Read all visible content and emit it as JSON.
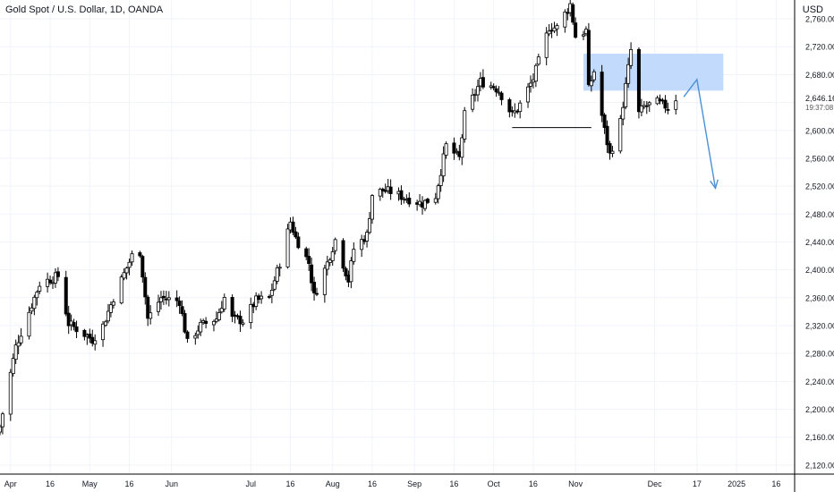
{
  "header": {
    "title": "Gold Spot / U.S. Dollar, 1D, OANDA",
    "currency": "USD"
  },
  "price_scale": {
    "current_price": "2,646.160",
    "countdown": "19:37:08"
  },
  "chart_data": {
    "type": "candlestick",
    "y_ticks": [
      "2,760.000",
      "2,720.000",
      "2,680.000",
      "2,640.000",
      "2,600.000",
      "2,560.000",
      "2,520.000",
      "2,480.000",
      "2,440.000",
      "2,400.000",
      "2,360.000",
      "2,320.000",
      "2,280.000",
      "2,240.000",
      "2,200.000",
      "2,160.000",
      "2,120.000"
    ],
    "ylim": [
      2107,
      2787
    ],
    "x_ticks": [
      {
        "label": "Apr",
        "date": "2024-04-01"
      },
      {
        "label": "16",
        "date": "2024-04-16"
      },
      {
        "label": "May",
        "date": "2024-05-01"
      },
      {
        "label": "16",
        "date": "2024-05-16"
      },
      {
        "label": "Jun",
        "date": "2024-06-01"
      },
      {
        "label": "Jul",
        "date": "2024-07-01"
      },
      {
        "label": "16",
        "date": "2024-07-16"
      },
      {
        "label": "Aug",
        "date": "2024-08-01"
      },
      {
        "label": "16",
        "date": "2024-08-16"
      },
      {
        "label": "Sep",
        "date": "2024-09-01"
      },
      {
        "label": "16",
        "date": "2024-09-16"
      },
      {
        "label": "Oct",
        "date": "2024-10-01"
      },
      {
        "label": "16",
        "date": "2024-10-16"
      },
      {
        "label": "Nov",
        "date": "2024-11-01"
      },
      {
        "label": "Dec",
        "date": "2024-12-01"
      },
      {
        "label": "17",
        "date": "2024-12-17"
      },
      {
        "label": "2025",
        "date": "2025-01-01"
      },
      {
        "label": "16",
        "date": "2025-01-16"
      }
    ],
    "xlim": [
      "2024-03-28",
      "2025-01-23"
    ],
    "anchors": [
      {
        "d": "2024-03-28",
        "p": 2175
      },
      {
        "d": "2024-04-03",
        "p": 2290
      },
      {
        "d": "2024-04-08",
        "p": 2340
      },
      {
        "d": "2024-04-12",
        "p": 2380
      },
      {
        "d": "2024-04-15",
        "p": 2385
      },
      {
        "d": "2024-04-19",
        "p": 2391
      },
      {
        "d": "2024-04-23",
        "p": 2323
      },
      {
        "d": "2024-05-02",
        "p": 2300
      },
      {
        "d": "2024-05-06",
        "p": 2320
      },
      {
        "d": "2024-05-10",
        "p": 2360
      },
      {
        "d": "2024-05-17",
        "p": 2420
      },
      {
        "d": "2024-05-20",
        "p": 2426
      },
      {
        "d": "2024-05-23",
        "p": 2330
      },
      {
        "d": "2024-05-28",
        "p": 2360
      },
      {
        "d": "2024-06-04",
        "p": 2355
      },
      {
        "d": "2024-06-07",
        "p": 2295
      },
      {
        "d": "2024-06-12",
        "p": 2320
      },
      {
        "d": "2024-06-18",
        "p": 2330
      },
      {
        "d": "2024-06-21",
        "p": 2360
      },
      {
        "d": "2024-06-24",
        "p": 2330
      },
      {
        "d": "2024-06-28",
        "p": 2327
      },
      {
        "d": "2024-07-03",
        "p": 2356
      },
      {
        "d": "2024-07-08",
        "p": 2360
      },
      {
        "d": "2024-07-12",
        "p": 2410
      },
      {
        "d": "2024-07-16",
        "p": 2469
      },
      {
        "d": "2024-07-18",
        "p": 2446
      },
      {
        "d": "2024-07-23",
        "p": 2410
      },
      {
        "d": "2024-07-25",
        "p": 2362
      },
      {
        "d": "2024-07-30",
        "p": 2410
      },
      {
        "d": "2024-08-02",
        "p": 2443
      },
      {
        "d": "2024-08-07",
        "p": 2385
      },
      {
        "d": "2024-08-09",
        "p": 2430
      },
      {
        "d": "2024-08-14",
        "p": 2450
      },
      {
        "d": "2024-08-16",
        "p": 2508
      },
      {
        "d": "2024-08-20",
        "p": 2514
      },
      {
        "d": "2024-08-23",
        "p": 2512
      },
      {
        "d": "2024-08-28",
        "p": 2504
      },
      {
        "d": "2024-09-04",
        "p": 2495
      },
      {
        "d": "2024-09-09",
        "p": 2506
      },
      {
        "d": "2024-09-13",
        "p": 2578
      },
      {
        "d": "2024-09-18",
        "p": 2560
      },
      {
        "d": "2024-09-20",
        "p": 2622
      },
      {
        "d": "2024-09-26",
        "p": 2670
      },
      {
        "d": "2024-10-01",
        "p": 2663
      },
      {
        "d": "2024-10-03",
        "p": 2657
      },
      {
        "d": "2024-10-08",
        "p": 2622
      },
      {
        "d": "2024-10-10",
        "p": 2630
      },
      {
        "d": "2024-10-16",
        "p": 2674
      },
      {
        "d": "2024-10-22",
        "p": 2748
      },
      {
        "d": "2024-10-25",
        "p": 2747
      },
      {
        "d": "2024-10-30",
        "p": 2781
      },
      {
        "d": "2024-11-01",
        "p": 2735
      },
      {
        "d": "2024-11-05",
        "p": 2743
      },
      {
        "d": "2024-11-06",
        "p": 2659
      },
      {
        "d": "2024-11-08",
        "p": 2685
      },
      {
        "d": "2024-11-12",
        "p": 2600
      },
      {
        "d": "2024-11-14",
        "p": 2565
      },
      {
        "d": "2024-11-18",
        "p": 2612
      },
      {
        "d": "2024-11-22",
        "p": 2715
      },
      {
        "d": "2024-11-25",
        "p": 2624
      },
      {
        "d": "2024-11-27",
        "p": 2634
      },
      {
        "d": "2024-12-02",
        "p": 2640
      },
      {
        "d": "2024-12-06",
        "p": 2633
      },
      {
        "d": "2024-12-09",
        "p": 2646
      }
    ],
    "supply_zone": {
      "from": "2024-11-04",
      "to": "2024-12-27",
      "low": 2657,
      "high": 2710
    },
    "support_line": {
      "from": "2024-10-08",
      "to": "2024-11-07",
      "price": 2604
    },
    "projection": [
      {
        "d": "2024-12-12",
        "p": 2648
      },
      {
        "d": "2024-12-17",
        "p": 2673
      },
      {
        "d": "2024-12-24",
        "p": 2517
      }
    ],
    "colors": {
      "up_body": "#ffffff",
      "down_body": "#000000",
      "outline": "#000000",
      "zone": "#bbd6fb",
      "projection": "#4a90d9",
      "grid": "#f0f3fa",
      "text": "#131722"
    },
    "grid": true
  }
}
